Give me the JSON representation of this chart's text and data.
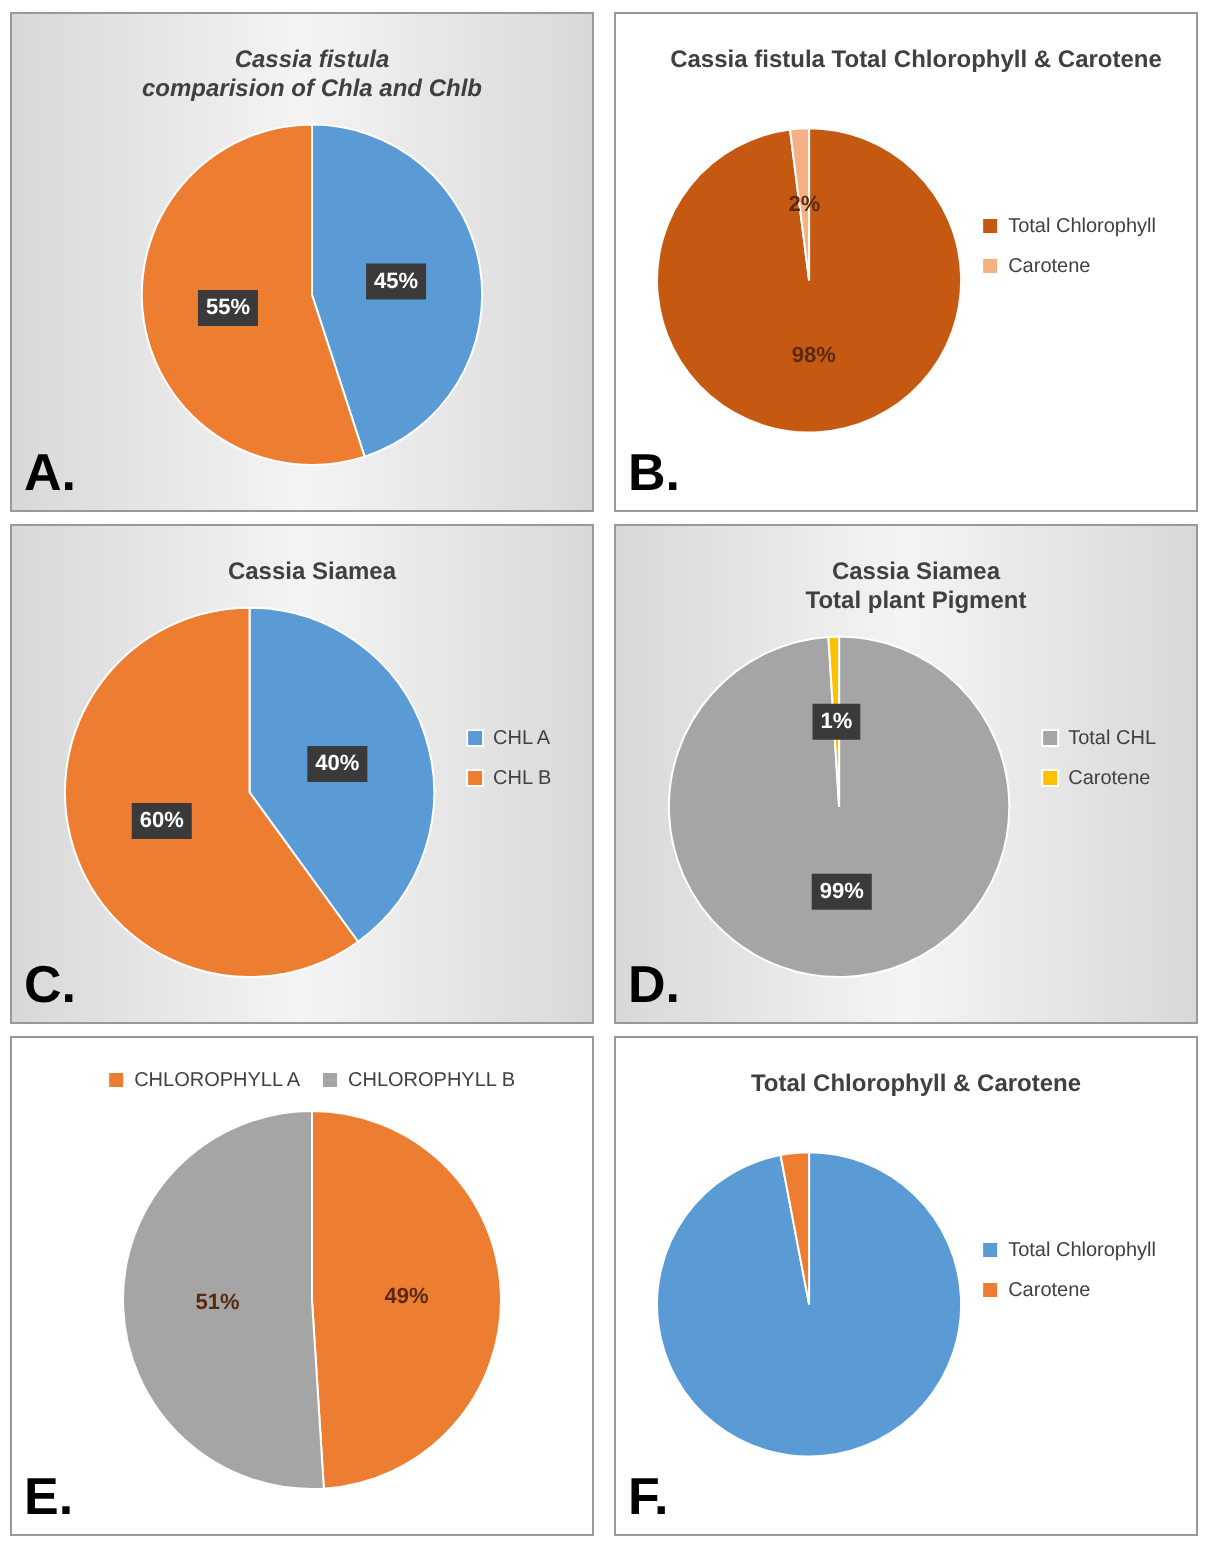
{
  "chart_data": [
    {
      "type": "pie",
      "title": "Cassia fistula\ncomparision of Chla and Chlb",
      "categories": [
        null,
        null
      ],
      "values": [
        45,
        55
      ],
      "colors": [
        "#5b9bd5",
        "#ed7d31"
      ],
      "value_labels": [
        "45%",
        "55%"
      ],
      "legend": false,
      "annotations": [
        "A."
      ]
    },
    {
      "type": "pie",
      "title": "Cassia fistula Total Chlorophyll & Carotene",
      "categories": [
        "Total Chlorophyll",
        "Carotene"
      ],
      "values": [
        98,
        2
      ],
      "colors": [
        "#c65911",
        "#f4b183"
      ],
      "value_labels": [
        "98%",
        "2%"
      ],
      "legend": "right",
      "annotations": [
        "B."
      ]
    },
    {
      "type": "pie",
      "title": "Cassia Siamea",
      "categories": [
        "CHL A",
        "CHL B"
      ],
      "values": [
        40,
        60
      ],
      "colors": [
        "#5b9bd5",
        "#ed7d31"
      ],
      "value_labels": [
        "40%",
        "60%"
      ],
      "legend": "right",
      "annotations": [
        "C."
      ]
    },
    {
      "type": "pie",
      "title": "Cassia Siamea\nTotal plant Pigment",
      "categories": [
        "Total CHL",
        "Carotene"
      ],
      "values": [
        99,
        1
      ],
      "colors": [
        "#a5a5a5",
        "#ffc000"
      ],
      "value_labels": [
        "99%",
        "1%"
      ],
      "legend": "right",
      "annotations": [
        "D."
      ]
    },
    {
      "type": "pie",
      "categories": [
        "CHLOROPHYLL A",
        "CHLOROPHYLL B"
      ],
      "values": [
        49,
        51
      ],
      "colors": [
        "#ed7d31",
        "#a5a5a5"
      ],
      "value_labels": [
        "49%",
        "51%"
      ],
      "legend": "top",
      "annotations": [
        "E."
      ]
    },
    {
      "type": "pie",
      "title": "Total Chlorophyll & Carotene",
      "categories": [
        "Total Chlorophyll",
        "Carotene"
      ],
      "values": [
        97,
        3
      ],
      "colors": [
        "#5b9bd5",
        "#ed7d31"
      ],
      "legend": "right",
      "annotations": [
        "F."
      ]
    }
  ]
}
